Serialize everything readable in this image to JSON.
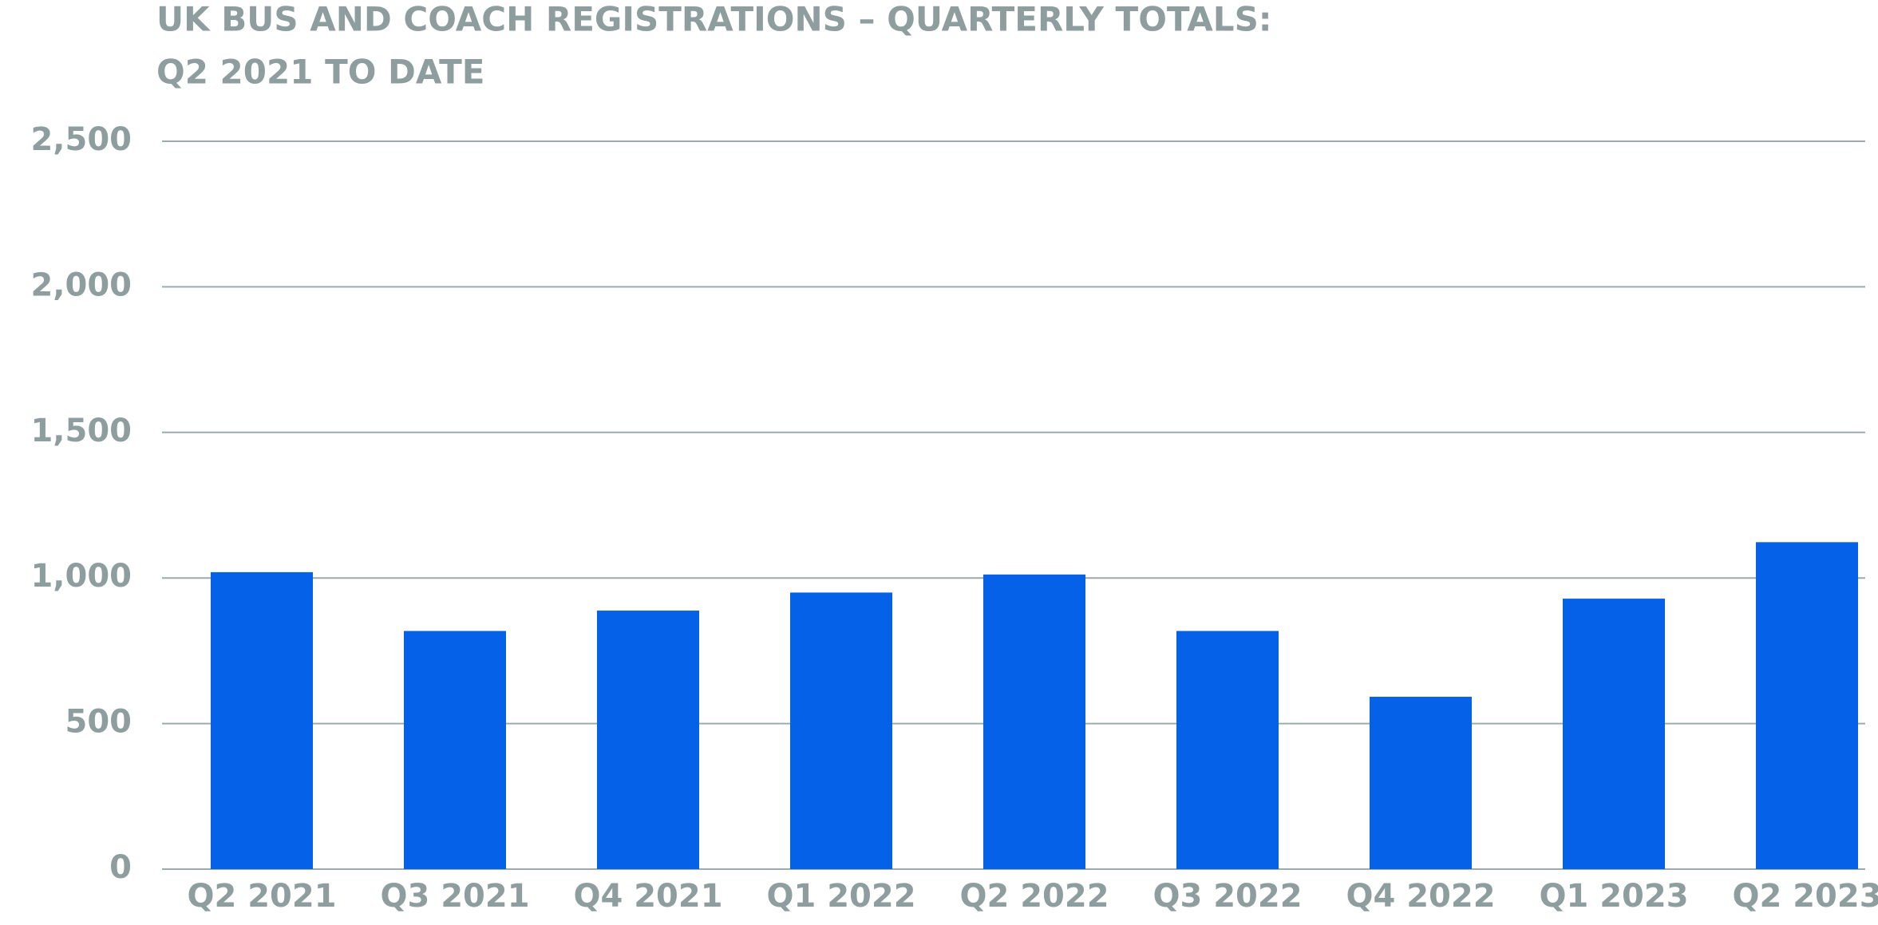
{
  "chart_data": {
    "type": "bar",
    "title": [
      "UK BUS AND COACH REGISTRATIONS – QUARTERLY TOTALS:",
      "Q2 2021 TO DATE"
    ],
    "categories": [
      "Q2 2021",
      "Q3 2021",
      "Q4 2021",
      "Q1 2022",
      "Q2 2022",
      "Q3 2022",
      "Q4 2022",
      "Q1 2023",
      "Q2 2023"
    ],
    "values": [
      1020,
      818,
      888,
      950,
      1012,
      818,
      592,
      929,
      1123
    ],
    "color": "#0461e8",
    "ylim": [
      0,
      2500
    ],
    "yticks": [
      0,
      500,
      {
        "value": 1000,
        "label": "1,000"
      },
      {
        "value": 1500,
        "label": "1,500"
      },
      {
        "value": 2000,
        "label": "2,000"
      },
      {
        "value": 2500,
        "label": "2,500"
      }
    ],
    "grid": true
  }
}
